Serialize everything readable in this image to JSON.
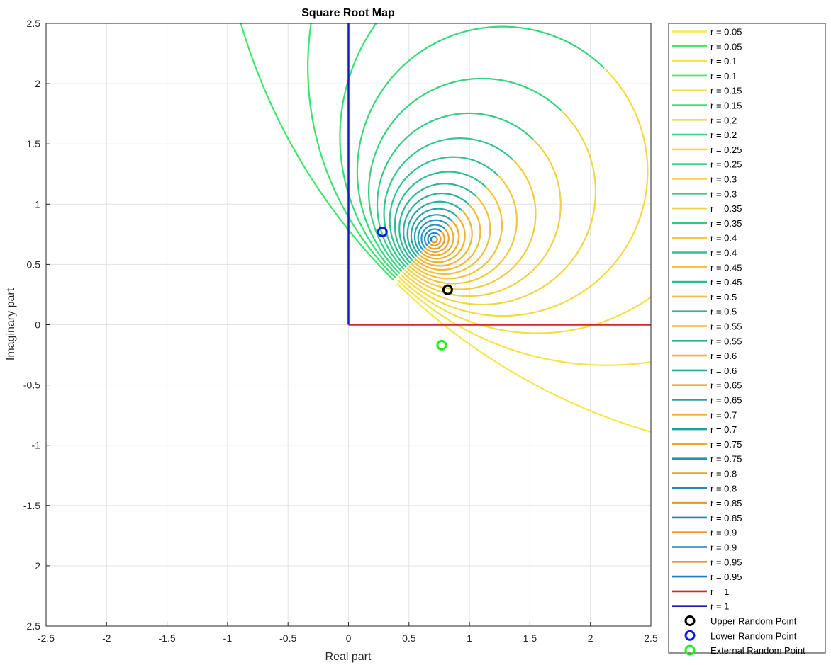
{
  "chart_data": {
    "type": "line",
    "title": "Square Root Map",
    "xlabel": "Real part",
    "ylabel": "Imaginary part",
    "xlim": [
      -2.5,
      2.5
    ],
    "ylim": [
      -2.5,
      2.5
    ],
    "grid": true,
    "legend_placement": "outside-right",
    "xticks": [
      "-2.5",
      "-2",
      "-1.5",
      "-1",
      "-0.5",
      "0",
      "0.5",
      "1",
      "1.5",
      "2",
      "2.5"
    ],
    "yticks": [
      "-2.5",
      "-2",
      "-1.5",
      "-1",
      "-0.5",
      "0",
      "0.5",
      "1",
      "1.5",
      "2",
      "2.5"
    ],
    "radii": [
      0.05,
      0.1,
      0.15,
      0.2,
      0.25,
      0.3,
      0.35,
      0.4,
      0.45,
      0.5,
      0.55,
      0.6,
      0.65,
      0.7,
      0.75,
      0.8,
      0.85,
      0.9,
      0.95
    ],
    "series_colors": {
      "upper_start": "#f5e84a",
      "upper_end": "#ee9522",
      "lower_start": "#3ee96a",
      "lower_end": "#1d85c9",
      "boundary_upper": "#d62728",
      "boundary_lower": "#1a1ab8"
    },
    "boundary_segments": [
      {
        "label": "r = 1",
        "color": "#d62728",
        "points": [
          [
            0,
            0
          ],
          [
            2.5,
            0
          ]
        ]
      },
      {
        "label": "r = 1",
        "color": "#1a1ab8",
        "points": [
          [
            0,
            0
          ],
          [
            0,
            2.5
          ]
        ]
      }
    ],
    "points": [
      {
        "label": "Upper Random Point",
        "x": 0.82,
        "y": 0.29,
        "color": "#000000"
      },
      {
        "label": "Lower Random Point",
        "x": 0.28,
        "y": 0.77,
        "color": "#0f1fd6"
      },
      {
        "label": "External Random Point",
        "x": 0.77,
        "y": -0.17,
        "color": "#22ee22"
      }
    ],
    "legend_entries": [
      {
        "label": "r = 0.05",
        "color": "#f6ec4e",
        "kind": "line"
      },
      {
        "label": "r = 0.05",
        "color": "#42e86c",
        "kind": "line"
      },
      {
        "label": "r = 0.1",
        "color": "#f5e74c",
        "kind": "line"
      },
      {
        "label": "r = 0.1",
        "color": "#40e36f",
        "kind": "line"
      },
      {
        "label": "r = 0.15",
        "color": "#f5e24a",
        "kind": "line"
      },
      {
        "label": "r = 0.15",
        "color": "#3edd73",
        "kind": "line"
      },
      {
        "label": "r = 0.2",
        "color": "#f4dd48",
        "kind": "line"
      },
      {
        "label": "r = 0.2",
        "color": "#3cd777",
        "kind": "line"
      },
      {
        "label": "r = 0.25",
        "color": "#f4d846",
        "kind": "line"
      },
      {
        "label": "r = 0.25",
        "color": "#3ad17b",
        "kind": "line"
      },
      {
        "label": "r = 0.3",
        "color": "#f3d244",
        "kind": "line"
      },
      {
        "label": "r = 0.3",
        "color": "#38cb7f",
        "kind": "line"
      },
      {
        "label": "r = 0.35",
        "color": "#f3cd42",
        "kind": "line"
      },
      {
        "label": "r = 0.35",
        "color": "#35c584",
        "kind": "line"
      },
      {
        "label": "r = 0.4",
        "color": "#f2c840",
        "kind": "line"
      },
      {
        "label": "r = 0.4",
        "color": "#33bf88",
        "kind": "line"
      },
      {
        "label": "r = 0.45",
        "color": "#f2c33e",
        "kind": "line"
      },
      {
        "label": "r = 0.45",
        "color": "#31b98c",
        "kind": "line"
      },
      {
        "label": "r = 0.5",
        "color": "#f1be3c",
        "kind": "line"
      },
      {
        "label": "r = 0.5",
        "color": "#2fb390",
        "kind": "line"
      },
      {
        "label": "r = 0.55",
        "color": "#f1b93a",
        "kind": "line"
      },
      {
        "label": "r = 0.55",
        "color": "#2dad95",
        "kind": "line"
      },
      {
        "label": "r = 0.6",
        "color": "#f0b438",
        "kind": "line"
      },
      {
        "label": "r = 0.6",
        "color": "#2ba799",
        "kind": "line"
      },
      {
        "label": "r = 0.65",
        "color": "#f0ae36",
        "kind": "line"
      },
      {
        "label": "r = 0.65",
        "color": "#29a19d",
        "kind": "line"
      },
      {
        "label": "r = 0.7",
        "color": "#efa934",
        "kind": "line"
      },
      {
        "label": "r = 0.7",
        "color": "#279ba2",
        "kind": "line"
      },
      {
        "label": "r = 0.75",
        "color": "#efa432",
        "kind": "line"
      },
      {
        "label": "r = 0.75",
        "color": "#2495a6",
        "kind": "line"
      },
      {
        "label": "r = 0.8",
        "color": "#ee9f30",
        "kind": "line"
      },
      {
        "label": "r = 0.8",
        "color": "#228faa",
        "kind": "line"
      },
      {
        "label": "r = 0.85",
        "color": "#ee9a2e",
        "kind": "line"
      },
      {
        "label": "r = 0.85",
        "color": "#2089ae",
        "kind": "line"
      },
      {
        "label": "r = 0.9",
        "color": "#ed952c",
        "kind": "line"
      },
      {
        "label": "r = 0.9",
        "color": "#1e83b3",
        "kind": "line"
      },
      {
        "label": "r = 0.95",
        "color": "#ed902a",
        "kind": "line"
      },
      {
        "label": "r = 0.95",
        "color": "#1c7db7",
        "kind": "line"
      },
      {
        "label": "r = 1",
        "color": "#d62728",
        "kind": "line"
      },
      {
        "label": "r = 1",
        "color": "#1a1ab8",
        "kind": "line"
      },
      {
        "label": "Upper Random Point",
        "color": "#000000",
        "kind": "marker"
      },
      {
        "label": "Lower Random Point",
        "color": "#0f1fd6",
        "kind": "marker"
      },
      {
        "label": "External Random Point",
        "color": "#22ee22",
        "kind": "marker"
      }
    ]
  }
}
